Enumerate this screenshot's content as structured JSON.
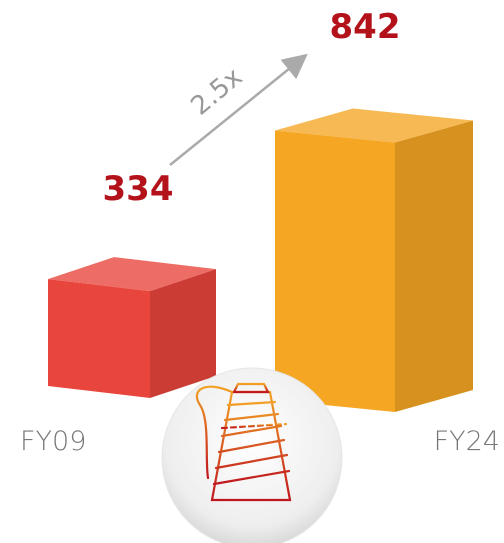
{
  "chart_data": {
    "type": "bar",
    "categories": [
      "FY09",
      "FY24"
    ],
    "values": [
      334,
      842
    ],
    "annotation": "2.5x",
    "colors": [
      "#e8453c",
      "#f5a623"
    ]
  }
}
